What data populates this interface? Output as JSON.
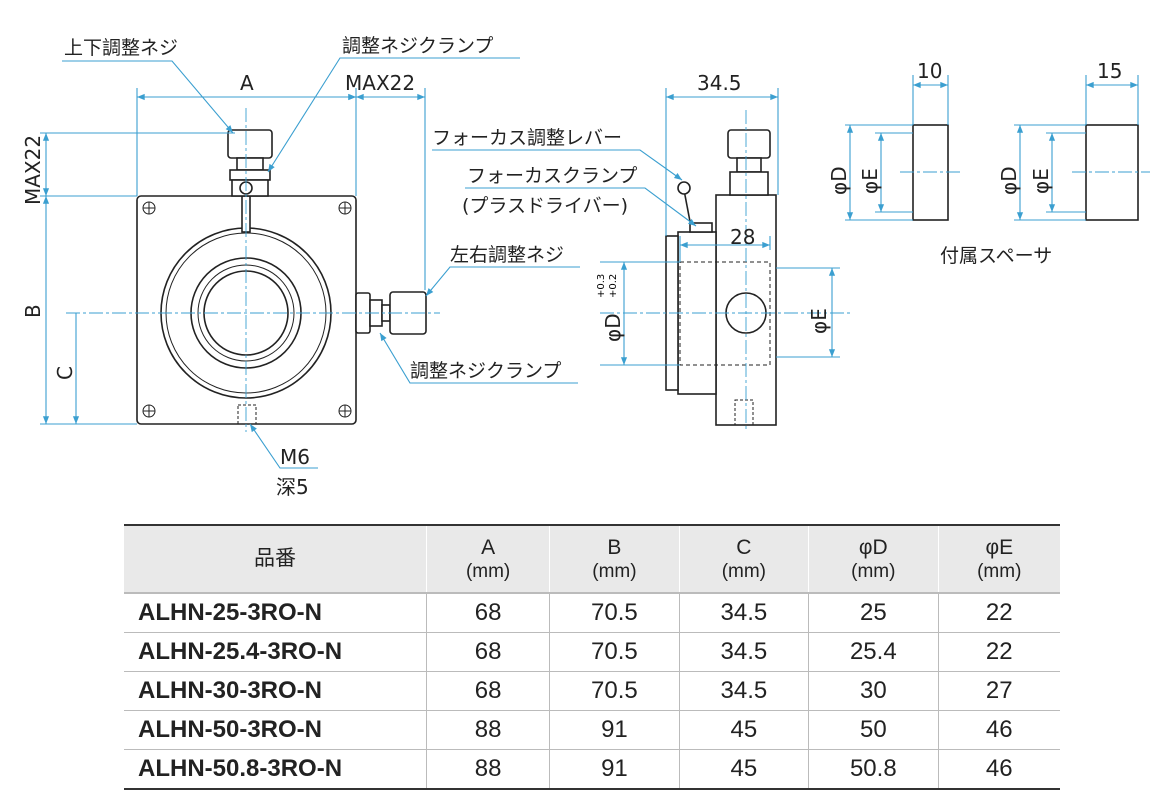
{
  "front_view": {
    "labels": {
      "vertical_adjust_screw": "上下調整ネジ",
      "adjust_screw_clamp_top": "調整ネジクランプ",
      "horizontal_adjust_screw": "左右調整ネジ",
      "adjust_screw_clamp_side": "調整ネジクランプ",
      "thread": "M6",
      "depth": "深5"
    },
    "dims": {
      "a": "A",
      "max22_h": "MAX22",
      "max22_v": "MAX22",
      "b": "B",
      "c": "C"
    }
  },
  "side_view": {
    "labels": {
      "focus_lever": "フォーカス調整レバー",
      "focus_clamp": "フォーカスクランプ",
      "focus_clamp_note": "(プラスドライバー)"
    },
    "dims": {
      "width": "34.5",
      "inner": "28",
      "phi_d": "φD",
      "phi_d_tol_upper": "+0.3",
      "phi_d_tol_lower": "+0.2",
      "phi_e": "φE"
    }
  },
  "spacers": {
    "caption": "付属スペーサ",
    "items": [
      {
        "width": "10",
        "phi_d": "φD",
        "phi_e": "φE"
      },
      {
        "width": "15",
        "phi_d": "φD",
        "phi_e": "φE"
      }
    ]
  },
  "colors": {
    "dimension_line": "#3b9fd0",
    "table_header": "#e9e9e9"
  },
  "table": {
    "headers": [
      {
        "label": "品番",
        "unit": ""
      },
      {
        "label": "A",
        "unit": "(mm)"
      },
      {
        "label": "B",
        "unit": "(mm)"
      },
      {
        "label": "C",
        "unit": "(mm)"
      },
      {
        "label": "φD",
        "unit": "(mm)"
      },
      {
        "label": "φE",
        "unit": "(mm)"
      }
    ],
    "rows": [
      [
        "ALHN-25-3RO-N",
        "68",
        "70.5",
        "34.5",
        "25",
        "22"
      ],
      [
        "ALHN-25.4-3RO-N",
        "68",
        "70.5",
        "34.5",
        "25.4",
        "22"
      ],
      [
        "ALHN-30-3RO-N",
        "68",
        "70.5",
        "34.5",
        "30",
        "27"
      ],
      [
        "ALHN-50-3RO-N",
        "88",
        "91",
        "45",
        "50",
        "46"
      ],
      [
        "ALHN-50.8-3RO-N",
        "88",
        "91",
        "45",
        "50.8",
        "46"
      ]
    ]
  }
}
